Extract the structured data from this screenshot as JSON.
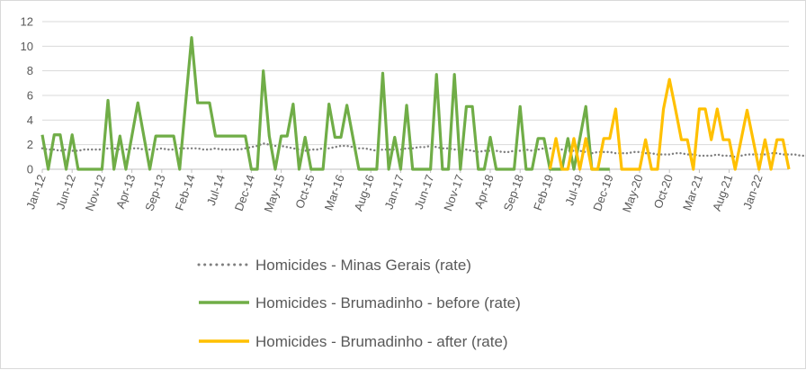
{
  "chart_data": {
    "type": "line",
    "title": "",
    "xlabel": "",
    "ylabel": "",
    "ylim": [
      0,
      12
    ],
    "yticks": [
      0,
      2,
      4,
      6,
      8,
      10,
      12
    ],
    "grid": "horizontal",
    "legend_position": "bottom",
    "x_tick_labels": [
      "Jan-12",
      "Jun-12",
      "Nov-12",
      "Apr-13",
      "Sep-13",
      "Feb-14",
      "Jul-14",
      "Dec-14",
      "May-15",
      "Oct-15",
      "Mar-16",
      "Aug-16",
      "Jan-17",
      "Jun-17",
      "Nov-17",
      "Apr-18",
      "Sep-18",
      "Feb-19",
      "Jul-19",
      "Dec-19",
      "May-20",
      "Oct-20",
      "Mar-21",
      "Aug-21",
      "Jan-22"
    ],
    "x_start": "2012-01",
    "series": [
      {
        "name": "Homicides - Minas Gerais (rate)",
        "color": "#7f7f7f",
        "style": "dotted",
        "start_month": 0,
        "values": [
          1.7,
          1.6,
          1.6,
          1.5,
          1.6,
          1.5,
          1.5,
          1.6,
          1.6,
          1.6,
          1.6,
          1.7,
          1.7,
          1.6,
          1.6,
          1.7,
          1.7,
          1.6,
          1.6,
          1.6,
          1.7,
          1.6,
          1.6,
          1.7,
          1.7,
          1.7,
          1.7,
          1.6,
          1.6,
          1.7,
          1.6,
          1.6,
          1.6,
          1.6,
          1.7,
          1.8,
          1.9,
          2.1,
          2.0,
          1.9,
          1.9,
          1.8,
          1.7,
          1.6,
          1.5,
          1.6,
          1.6,
          1.7,
          1.7,
          1.8,
          1.9,
          1.9,
          1.8,
          1.7,
          1.7,
          1.6,
          1.5,
          1.6,
          1.6,
          1.6,
          1.6,
          1.7,
          1.7,
          1.8,
          1.8,
          1.9,
          1.8,
          1.7,
          1.7,
          1.6,
          1.6,
          1.6,
          1.5,
          1.4,
          1.5,
          1.5,
          1.5,
          1.4,
          1.4,
          1.5,
          1.5,
          1.6,
          1.5,
          1.6,
          1.7,
          1.7,
          1.6,
          1.6,
          1.5,
          1.5,
          1.5,
          1.4,
          1.3,
          1.4,
          1.4,
          1.4,
          1.3,
          1.3,
          1.3,
          1.4,
          1.4,
          1.3,
          1.3,
          1.2,
          1.2,
          1.2,
          1.3,
          1.3,
          1.2,
          1.2,
          1.1,
          1.1,
          1.1,
          1.2,
          1.1,
          1.1,
          1.0,
          1.1,
          1.2,
          1.2,
          1.2,
          1.2,
          1.3,
          1.3,
          1.2,
          1.2,
          1.2,
          1.1,
          1.1,
          1.0,
          1.0,
          0.9,
          1.0,
          1.0,
          1.0,
          1.1,
          1.1,
          1.0,
          1.0,
          1.0,
          1.0,
          1.0,
          0.9,
          0.9,
          1.0,
          1.0,
          0.9,
          0.9,
          0.9,
          0.8,
          0.9,
          0.9,
          0.9,
          1.0,
          1.0,
          0.9,
          0.9,
          0.9,
          1.0,
          1.1,
          1.2,
          1.1,
          1.1,
          1.0,
          1.0,
          1.1,
          1.1
        ]
      },
      {
        "name": "Homicides - Brumadinho - before (rate)",
        "color": "#70ad47",
        "style": "solid",
        "start_month": 0,
        "values": [
          2.8,
          0,
          2.8,
          2.8,
          0,
          2.8,
          0,
          0,
          0,
          0,
          0,
          5.6,
          0,
          2.7,
          0,
          2.7,
          5.4,
          2.7,
          0,
          2.7,
          2.7,
          2.7,
          2.7,
          0,
          5.4,
          10.7,
          5.4,
          5.4,
          5.4,
          2.7,
          2.7,
          2.7,
          2.7,
          2.7,
          2.7,
          0,
          0,
          8.0,
          2.7,
          0,
          2.7,
          2.7,
          5.3,
          0,
          2.6,
          0,
          0,
          0,
          5.3,
          2.6,
          2.6,
          5.2,
          2.6,
          0,
          0,
          0,
          0,
          7.8,
          0,
          2.6,
          0,
          5.2,
          0,
          0,
          0,
          0,
          7.7,
          0,
          0,
          7.7,
          0,
          5.1,
          5.1,
          0,
          0,
          2.6,
          0,
          0,
          0,
          0,
          5.1,
          0,
          0,
          2.5,
          2.5,
          0,
          0,
          0,
          2.5,
          0,
          2.5,
          5.1,
          0,
          0,
          0,
          0
        ]
      },
      {
        "name": "Homicides - Brumadinho - after (rate)",
        "color": "#ffc000",
        "style": "solid",
        "start_month": 85,
        "values": [
          0,
          2.5,
          0,
          0,
          2.5,
          0,
          2.5,
          0,
          0,
          2.5,
          2.5,
          4.9,
          0,
          0,
          0,
          0,
          2.4,
          0,
          0,
          4.9,
          7.3,
          4.9,
          2.4,
          2.4,
          0,
          4.9,
          4.9,
          2.4,
          4.9,
          2.4,
          2.4,
          0,
          2.4,
          4.8,
          2.4,
          0,
          2.4,
          0,
          2.4,
          2.4,
          0
        ]
      }
    ]
  }
}
